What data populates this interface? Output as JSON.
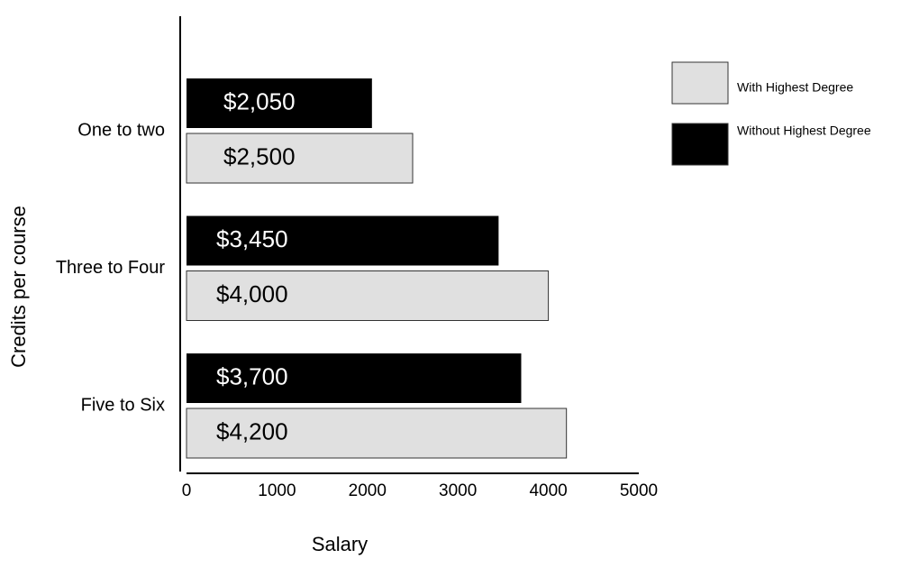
{
  "chart_data": {
    "type": "hbar",
    "x_label": "Salary",
    "y_label": "Credits per course",
    "categories": [
      "One to two",
      "Three to Four",
      "Five to Six"
    ],
    "series": [
      {
        "name": "With Highest Degree",
        "color": "#e0e0e0",
        "values": [
          2500,
          4000,
          4200
        ],
        "value_labels": [
          "$2,500",
          "$4,000",
          "$4,200"
        ]
      },
      {
        "name": "Without Highest Degree",
        "color": "#000000",
        "values": [
          2050,
          3450,
          3700
        ],
        "value_labels": [
          "$2,050",
          "$3,450",
          "$3,700"
        ]
      }
    ],
    "xlim": [
      0,
      5000
    ],
    "xticks": [
      0,
      1000,
      2000,
      3000,
      4000,
      5000
    ],
    "legend": "top-right"
  }
}
